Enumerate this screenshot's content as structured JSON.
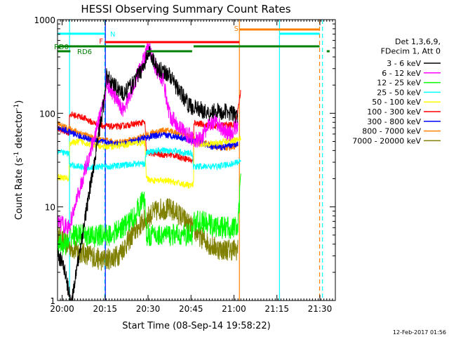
{
  "chart_data": {
    "type": "line",
    "title": "HESSI Observing Summary Count Rates",
    "xlabel": "Start Time (08-Sep-14 19:58:22)",
    "ylabel_main": "Count Rate (s",
    "ylabel_sup1": "-1",
    "ylabel_mid": " detector",
    "ylabel_sup2": "-1",
    "ylabel_end": ")",
    "xlim_minutes": [
      0,
      97
    ],
    "ylim": [
      1,
      1000
    ],
    "yscale": "log",
    "x_ticks": [
      {
        "label": "20:00",
        "m": 1.6
      },
      {
        "label": "20:15",
        "m": 16.6
      },
      {
        "label": "20:30",
        "m": 31.6
      },
      {
        "label": "20:45",
        "m": 46.6
      },
      {
        "label": "21:00",
        "m": 61.6
      },
      {
        "label": "21:15",
        "m": 76.6
      },
      {
        "label": "21:30",
        "m": 91.6
      }
    ],
    "y_ticks": [
      {
        "label": "1",
        "v": 1
      },
      {
        "label": "10",
        "v": 10
      },
      {
        "label": "100",
        "v": 100
      },
      {
        "label": "1000",
        "v": 1000
      }
    ],
    "legend_header": [
      "Det 1,3,6,9,",
      "FDecim 1, Att 0"
    ],
    "legend_position": "right, outside plot",
    "series": [
      {
        "name": "3 - 6 keV",
        "color": "#000000",
        "points": [
          [
            0,
            3
          ],
          [
            2,
            2.5
          ],
          [
            4,
            1.2
          ],
          [
            5,
            1
          ],
          [
            16.5,
            150
          ],
          [
            17,
            250
          ],
          [
            20,
            200
          ],
          [
            23,
            160
          ],
          [
            26,
            200
          ],
          [
            29,
            280
          ],
          [
            30.5,
            350
          ],
          [
            32,
            450
          ],
          [
            33,
            400
          ],
          [
            35,
            300
          ],
          [
            37,
            280
          ],
          [
            39,
            260
          ],
          [
            41,
            200
          ],
          [
            44,
            150
          ],
          [
            46,
            120
          ],
          [
            48,
            115
          ],
          [
            50,
            110
          ],
          [
            53,
            100
          ],
          [
            55,
            110
          ],
          [
            57,
            100
          ],
          [
            59,
            105
          ],
          [
            61,
            100
          ],
          [
            63,
            90
          ]
        ]
      },
      {
        "name": "6 - 12 keV",
        "color": "#ff00ff",
        "points": [
          [
            0,
            7
          ],
          [
            2,
            6.5
          ],
          [
            4,
            6
          ],
          [
            16.5,
            140
          ],
          [
            17,
            220
          ],
          [
            19,
            170
          ],
          [
            21,
            130
          ],
          [
            23,
            110
          ],
          [
            25,
            150
          ],
          [
            27,
            220
          ],
          [
            29,
            300
          ],
          [
            30.5,
            420
          ],
          [
            32,
            500
          ],
          [
            33,
            380
          ],
          [
            35,
            280
          ],
          [
            37,
            220
          ],
          [
            39,
            100
          ],
          [
            41,
            80
          ],
          [
            43,
            70
          ],
          [
            45,
            60
          ],
          [
            47,
            55
          ],
          [
            49,
            50
          ],
          [
            51,
            60
          ],
          [
            53,
            75
          ],
          [
            55,
            80
          ],
          [
            57,
            70
          ],
          [
            60,
            60
          ],
          [
            63,
            75
          ]
        ]
      },
      {
        "name": "12 - 25 keV",
        "color": "#00ff00",
        "points": [
          [
            0,
            4
          ],
          [
            4,
            4
          ],
          [
            4.2,
            5
          ],
          [
            8,
            5
          ],
          [
            12,
            4.8
          ],
          [
            16,
            5
          ],
          [
            16.5,
            5
          ],
          [
            18,
            5
          ],
          [
            21,
            5.5
          ],
          [
            24,
            6.5
          ],
          [
            27,
            8
          ],
          [
            29,
            11
          ],
          [
            30.5,
            12
          ],
          [
            31,
            5
          ],
          [
            33,
            5
          ],
          [
            36,
            5
          ],
          [
            40,
            5
          ],
          [
            44,
            5
          ],
          [
            47,
            5
          ],
          [
            47.5,
            7
          ],
          [
            50,
            7
          ],
          [
            53,
            6.5
          ],
          [
            56,
            6
          ],
          [
            59,
            6
          ],
          [
            63,
            6
          ],
          [
            64,
            20
          ]
        ]
      },
      {
        "name": "25 - 50 keV",
        "color": "#00ffff",
        "points": [
          [
            0,
            39
          ],
          [
            2,
            38
          ],
          [
            4,
            37
          ],
          [
            4.2,
            28
          ],
          [
            8,
            27
          ],
          [
            12,
            26.5
          ],
          [
            16,
            27
          ],
          [
            18,
            27
          ],
          [
            21,
            27.5
          ],
          [
            24,
            28
          ],
          [
            27,
            29
          ],
          [
            30.5,
            29
          ],
          [
            31,
            38
          ],
          [
            35,
            40
          ],
          [
            40,
            40
          ],
          [
            44,
            38
          ],
          [
            47,
            37
          ],
          [
            47.5,
            27
          ],
          [
            51,
            27
          ],
          [
            55,
            27
          ],
          [
            59,
            28
          ],
          [
            63,
            30
          ],
          [
            64,
            32
          ]
        ]
      },
      {
        "name": "50 - 100 keV",
        "color": "#ffff00",
        "points": [
          [
            0,
            21
          ],
          [
            4,
            20
          ],
          [
            4.2,
            48
          ],
          [
            8,
            50
          ],
          [
            12,
            46
          ],
          [
            16,
            44
          ],
          [
            18,
            44
          ],
          [
            21,
            45
          ],
          [
            24,
            46
          ],
          [
            27,
            48
          ],
          [
            30.5,
            48
          ],
          [
            31,
            20
          ],
          [
            34,
            19
          ],
          [
            38,
            19
          ],
          [
            42,
            18
          ],
          [
            46,
            17
          ],
          [
            47.5,
            17
          ],
          [
            47.6,
            48
          ],
          [
            51,
            47
          ],
          [
            55,
            48
          ],
          [
            59,
            50
          ],
          [
            62,
            52
          ],
          [
            64,
            55
          ]
        ]
      },
      {
        "name": "100 - 300 keV",
        "color": "#ff0000",
        "points": [
          [
            0,
            68
          ],
          [
            4,
            62
          ],
          [
            4.2,
            98
          ],
          [
            6,
            95
          ],
          [
            9,
            90
          ],
          [
            12,
            80
          ],
          [
            15,
            75
          ],
          [
            18,
            72
          ],
          [
            21,
            72
          ],
          [
            24,
            74
          ],
          [
            27,
            77
          ],
          [
            30.5,
            80
          ],
          [
            31,
            38
          ],
          [
            34,
            37
          ],
          [
            37,
            36
          ],
          [
            40,
            36
          ],
          [
            43,
            34
          ],
          [
            46,
            32
          ],
          [
            47.5,
            30
          ],
          [
            47.6,
            80
          ],
          [
            51,
            75
          ],
          [
            55,
            73
          ],
          [
            59,
            75
          ],
          [
            62,
            75
          ],
          [
            63,
            110
          ],
          [
            64,
            180
          ]
        ]
      },
      {
        "name": "300 - 800 keV",
        "color": "#0000ff",
        "points": [
          [
            0,
            70
          ],
          [
            3,
            65
          ],
          [
            6,
            60
          ],
          [
            9,
            55
          ],
          [
            12,
            52
          ],
          [
            15,
            50
          ],
          [
            18,
            48
          ],
          [
            21,
            47
          ],
          [
            24,
            48
          ],
          [
            27,
            50
          ],
          [
            30,
            54
          ],
          [
            33,
            57
          ],
          [
            36,
            58
          ],
          [
            39,
            58
          ],
          [
            42,
            56
          ],
          [
            45,
            53
          ],
          [
            48,
            50
          ],
          [
            51,
            47
          ],
          [
            54,
            44
          ],
          [
            57,
            43
          ],
          [
            60,
            45
          ],
          [
            63,
            47
          ]
        ]
      },
      {
        "name": "800 - 7000 keV",
        "color": "#ff8000",
        "points": [
          [
            0,
            77
          ],
          [
            3,
            70
          ],
          [
            6,
            65
          ],
          [
            9,
            60
          ],
          [
            12,
            55
          ],
          [
            15,
            52
          ],
          [
            18,
            50
          ],
          [
            21,
            49
          ],
          [
            24,
            50
          ],
          [
            27,
            53
          ],
          [
            30,
            57
          ],
          [
            33,
            62
          ],
          [
            36,
            65
          ],
          [
            39,
            65
          ],
          [
            42,
            62
          ],
          [
            45,
            58
          ],
          [
            48,
            53
          ],
          [
            51,
            49
          ],
          [
            54,
            45
          ],
          [
            57,
            43
          ],
          [
            60,
            43
          ],
          [
            63,
            45
          ]
        ]
      },
      {
        "name": "7000 - 20000 keV",
        "color": "#808000",
        "points": [
          [
            0,
            5
          ],
          [
            3,
            4
          ],
          [
            6,
            3.5
          ],
          [
            9,
            3.2
          ],
          [
            12,
            3
          ],
          [
            15,
            2.7
          ],
          [
            18,
            2.8
          ],
          [
            21,
            3
          ],
          [
            24,
            4
          ],
          [
            27,
            5.5
          ],
          [
            30,
            7
          ],
          [
            33,
            8.5
          ],
          [
            36,
            9.5
          ],
          [
            39,
            9.5
          ],
          [
            42,
            8.5
          ],
          [
            45,
            7
          ],
          [
            48,
            5.5
          ],
          [
            51,
            4.5
          ],
          [
            54,
            3.8
          ],
          [
            57,
            3.5
          ],
          [
            60,
            3.5
          ],
          [
            63,
            3.5
          ]
        ]
      }
    ],
    "flag_bars": [
      {
        "label": "N",
        "color": "#00ffff",
        "segments": [
          [
            0,
            16.5
          ],
          [
            77.5,
            91.5
          ]
        ]
      },
      {
        "label": "F",
        "color": "#ff0000",
        "segments": [
          [
            16.5,
            63.5
          ]
        ]
      },
      {
        "label": "S",
        "color": "#ff8000",
        "segments": [
          [
            63.5,
            91.5
          ]
        ]
      },
      {
        "label": "RD0",
        "color": "#008000",
        "segments": [
          [
            0,
            30.5
          ],
          [
            47.5,
            91.5
          ]
        ]
      },
      {
        "label": "RD6",
        "color": "#008000",
        "segments": [
          [
            0,
            4.5
          ],
          [
            31,
            47
          ],
          [
            94,
            95
          ]
        ]
      }
    ],
    "vertical_markers": [
      {
        "m": 4.2,
        "color": "#00ffff",
        "style": "solid"
      },
      {
        "m": 16.5,
        "color": "#00ffff",
        "style": "dashed"
      },
      {
        "m": 16.7,
        "color": "#0000ff",
        "style": "solid"
      },
      {
        "m": 63.5,
        "color": "#ff8000",
        "style": "solid"
      },
      {
        "m": 77.5,
        "color": "#00ffff",
        "style": "solid"
      },
      {
        "m": 91.5,
        "color": "#ff8000",
        "style": "dashed"
      },
      {
        "m": 92.5,
        "color": "#00ffff",
        "style": "dashed"
      }
    ],
    "footer_date": "12-Feb-2017 01:56"
  }
}
